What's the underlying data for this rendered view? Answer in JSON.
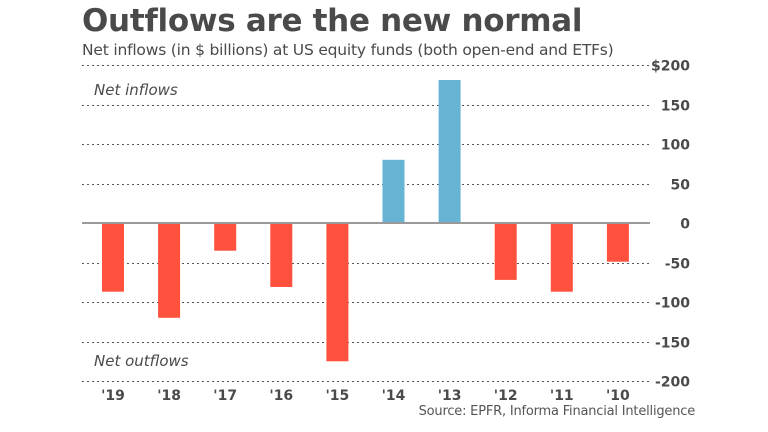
{
  "colors": {
    "inflow": "#67b3d3",
    "outflow": "#ff513d",
    "text": "#4a4a4a",
    "zero_line": "#9a9a9a"
  },
  "chart_data": {
    "type": "bar",
    "title": "Outflows are the new normal",
    "subtitle": "Net inflows (in $ billions) at US equity funds (both open-end and ETFs)",
    "source": "Source: EPFR, Informa Financial Intelligence",
    "xlabel": "",
    "ylabel": "",
    "categories": [
      "'19",
      "'18",
      "'17",
      "'16",
      "'15",
      "'14",
      "'13",
      "'12",
      "'11",
      "'10"
    ],
    "values": [
      -87,
      -120,
      -35,
      -81,
      -175,
      80,
      181,
      -72,
      -87,
      -49
    ],
    "ylim": [
      -200,
      200
    ],
    "yticks": [
      200,
      150,
      100,
      50,
      0,
      -50,
      -100,
      -150,
      -200
    ],
    "ytick_labels": [
      "$200",
      "150",
      "100",
      "50",
      "0",
      "-50",
      "-100",
      "-150",
      "-200"
    ],
    "grid": true,
    "y_axis_position": "right",
    "annotations": [
      {
        "text": "Net inflows",
        "position": "top-left"
      },
      {
        "text": "Net outflows",
        "position": "bottom-left"
      }
    ],
    "legend": null
  }
}
